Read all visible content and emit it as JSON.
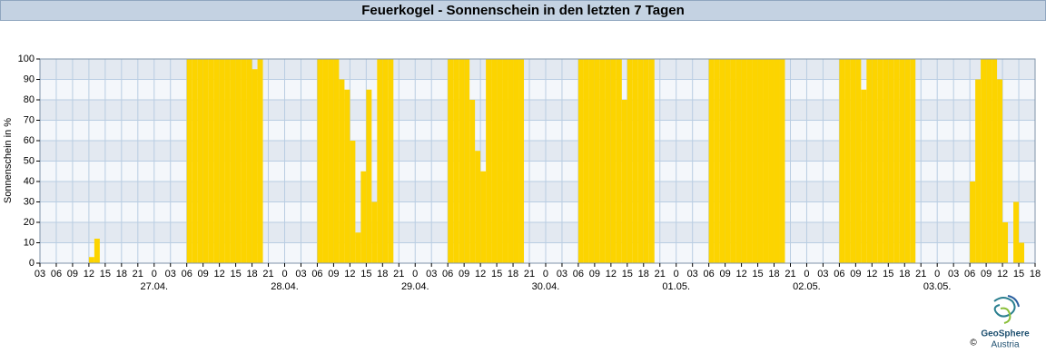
{
  "chart_data": {
    "type": "bar",
    "title": "Feuerkogel - Sonnenschein in den letzten 7 Tagen",
    "y_label": "Sonnenschein in %",
    "series": [
      {
        "name": "Sonnenschein",
        "color": "#fcd400",
        "x": [
          9,
          10,
          27,
          28,
          29,
          30,
          31,
          32,
          33,
          34,
          35,
          36,
          37,
          38,
          39,
          40,
          51,
          52,
          53,
          54,
          55,
          56,
          57,
          58,
          59,
          60,
          61,
          62,
          63,
          64,
          75,
          76,
          77,
          78,
          79,
          80,
          81,
          82,
          83,
          84,
          85,
          86,
          87,
          88,
          99,
          100,
          101,
          102,
          103,
          104,
          105,
          106,
          107,
          108,
          109,
          110,
          111,
          112,
          123,
          124,
          125,
          126,
          127,
          128,
          129,
          130,
          131,
          132,
          133,
          134,
          135,
          136,
          147,
          148,
          149,
          150,
          151,
          152,
          153,
          154,
          155,
          156,
          157,
          158,
          159,
          160,
          171,
          172,
          173,
          174,
          175,
          176,
          177,
          179,
          180
        ],
        "values": [
          3,
          12,
          100,
          100,
          100,
          100,
          100,
          100,
          100,
          100,
          100,
          100,
          100,
          100,
          95,
          100,
          100,
          100,
          100,
          100,
          90,
          85,
          60,
          15,
          45,
          85,
          30,
          100,
          100,
          100,
          100,
          100,
          100,
          100,
          80,
          55,
          45,
          100,
          100,
          100,
          100,
          100,
          100,
          100,
          100,
          100,
          100,
          100,
          100,
          100,
          100,
          100,
          80,
          100,
          100,
          100,
          100,
          100,
          100,
          100,
          100,
          100,
          100,
          100,
          100,
          100,
          100,
          100,
          100,
          100,
          100,
          100,
          100,
          100,
          100,
          100,
          85,
          100,
          100,
          100,
          100,
          100,
          100,
          100,
          100,
          100,
          40,
          90,
          100,
          100,
          100,
          90,
          20,
          30,
          10
        ]
      }
    ],
    "xlim": [
      0,
      183
    ],
    "xticks": [
      {
        "value": 0,
        "label": "03"
      },
      {
        "value": 3,
        "label": "06"
      },
      {
        "value": 6,
        "label": "09"
      },
      {
        "value": 9,
        "label": "12"
      },
      {
        "value": 12,
        "label": "15"
      },
      {
        "value": 15,
        "label": "18"
      },
      {
        "value": 18,
        "label": "21"
      },
      {
        "value": 21,
        "label": "0"
      },
      {
        "value": 24,
        "label": "03"
      },
      {
        "value": 27,
        "label": "06"
      },
      {
        "value": 30,
        "label": "09"
      },
      {
        "value": 33,
        "label": "12"
      },
      {
        "value": 36,
        "label": "15"
      },
      {
        "value": 39,
        "label": "18"
      },
      {
        "value": 42,
        "label": "21"
      },
      {
        "value": 45,
        "label": "0"
      },
      {
        "value": 48,
        "label": "03"
      },
      {
        "value": 51,
        "label": "06"
      },
      {
        "value": 54,
        "label": "09"
      },
      {
        "value": 57,
        "label": "12"
      },
      {
        "value": 60,
        "label": "15"
      },
      {
        "value": 63,
        "label": "18"
      },
      {
        "value": 66,
        "label": "21"
      },
      {
        "value": 69,
        "label": "0"
      },
      {
        "value": 72,
        "label": "03"
      },
      {
        "value": 75,
        "label": "06"
      },
      {
        "value": 78,
        "label": "09"
      },
      {
        "value": 81,
        "label": "12"
      },
      {
        "value": 84,
        "label": "15"
      },
      {
        "value": 87,
        "label": "18"
      },
      {
        "value": 90,
        "label": "21"
      },
      {
        "value": 93,
        "label": "0"
      },
      {
        "value": 96,
        "label": "03"
      },
      {
        "value": 99,
        "label": "06"
      },
      {
        "value": 102,
        "label": "09"
      },
      {
        "value": 105,
        "label": "12"
      },
      {
        "value": 108,
        "label": "15"
      },
      {
        "value": 111,
        "label": "18"
      },
      {
        "value": 114,
        "label": "21"
      },
      {
        "value": 117,
        "label": "0"
      },
      {
        "value": 120,
        "label": "03"
      },
      {
        "value": 123,
        "label": "06"
      },
      {
        "value": 126,
        "label": "09"
      },
      {
        "value": 129,
        "label": "12"
      },
      {
        "value": 132,
        "label": "15"
      },
      {
        "value": 135,
        "label": "18"
      },
      {
        "value": 138,
        "label": "21"
      },
      {
        "value": 141,
        "label": "0"
      },
      {
        "value": 144,
        "label": "03"
      },
      {
        "value": 147,
        "label": "06"
      },
      {
        "value": 150,
        "label": "09"
      },
      {
        "value": 153,
        "label": "12"
      },
      {
        "value": 156,
        "label": "15"
      },
      {
        "value": 159,
        "label": "18"
      },
      {
        "value": 162,
        "label": "21"
      },
      {
        "value": 165,
        "label": "0"
      },
      {
        "value": 168,
        "label": "03"
      },
      {
        "value": 171,
        "label": "06"
      },
      {
        "value": 174,
        "label": "09"
      },
      {
        "value": 177,
        "label": "12"
      },
      {
        "value": 180,
        "label": "15"
      },
      {
        "value": 183,
        "label": "18"
      }
    ],
    "date_labels": [
      {
        "value": 21,
        "label": "27.04."
      },
      {
        "value": 45,
        "label": "28.04."
      },
      {
        "value": 69,
        "label": "29.04."
      },
      {
        "value": 93,
        "label": "30.04."
      },
      {
        "value": 117,
        "label": "01.05."
      },
      {
        "value": 141,
        "label": "02.05."
      },
      {
        "value": 165,
        "label": "03.05."
      }
    ],
    "ylim": [
      0,
      100
    ],
    "yticks": [
      0,
      10,
      20,
      30,
      40,
      50,
      60,
      70,
      80,
      90,
      100
    ],
    "grid": true
  },
  "footer": {
    "brand": "GeoSphere",
    "country": "Austria",
    "copyright": "©"
  }
}
